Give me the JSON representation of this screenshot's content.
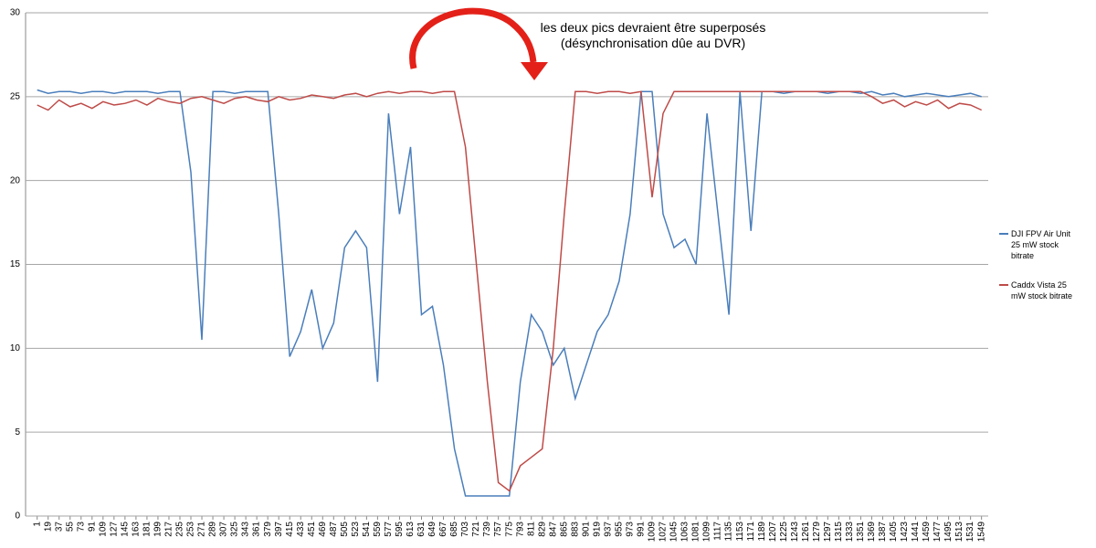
{
  "chart_data": {
    "type": "line",
    "annotations": [
      "les deux pics devraient être superposés",
      "(désynchronisation dûe au DVR)"
    ],
    "x": [
      1,
      19,
      37,
      55,
      73,
      91,
      109,
      127,
      145,
      163,
      181,
      199,
      217,
      235,
      253,
      271,
      289,
      307,
      325,
      343,
      361,
      379,
      397,
      415,
      433,
      451,
      469,
      487,
      505,
      523,
      541,
      559,
      577,
      595,
      613,
      631,
      649,
      667,
      685,
      703,
      721,
      739,
      757,
      775,
      793,
      811,
      829,
      847,
      865,
      883,
      901,
      919,
      937,
      955,
      973,
      991,
      1009,
      1027,
      1045,
      1063,
      1081,
      1099,
      1117,
      1135,
      1153,
      1171,
      1189,
      1207,
      1225,
      1243,
      1261,
      1279,
      1297,
      1315,
      1333,
      1351,
      1369,
      1387,
      1405,
      1423,
      1441,
      1459,
      1477,
      1495,
      1513,
      1531,
      1549
    ],
    "series": [
      {
        "name": "DJI FPV Air Unit 25 mW stock bitrate",
        "color": "#4a7ebb",
        "values": [
          25.4,
          25.2,
          25.3,
          25.3,
          25.2,
          25.3,
          25.3,
          25.2,
          25.3,
          25.3,
          25.3,
          25.2,
          25.3,
          25.3,
          20.5,
          10.5,
          25.3,
          25.3,
          25.2,
          25.3,
          25.3,
          25.3,
          18,
          9.5,
          11,
          13.5,
          10,
          11.5,
          16,
          17,
          16,
          8,
          24,
          18,
          22,
          12,
          12.5,
          9,
          4,
          1.2,
          1.2,
          1.2,
          1.2,
          1.2,
          8,
          12,
          11,
          9,
          10,
          7,
          9,
          11,
          12,
          14,
          18,
          25.3,
          25.3,
          18,
          16,
          16.5,
          15,
          24,
          18,
          12,
          25.3,
          17,
          25.3,
          25.3,
          25.2,
          25.3,
          25.3,
          25.3,
          25.2,
          25.3,
          25.3,
          25.2,
          25.3,
          25.1,
          25.2,
          25.0,
          25.1,
          25.2,
          25.1,
          25.0,
          25.1,
          25.2,
          25.0
        ]
      },
      {
        "name": "Caddx Vista 25 mW stock bitrate",
        "color": "#be4b48",
        "values": [
          24.5,
          24.2,
          24.8,
          24.4,
          24.6,
          24.3,
          24.7,
          24.5,
          24.6,
          24.8,
          24.5,
          24.9,
          24.7,
          24.6,
          24.9,
          25.0,
          24.8,
          24.6,
          24.9,
          25.0,
          24.8,
          24.7,
          25.0,
          24.8,
          24.9,
          25.1,
          25.0,
          24.9,
          25.1,
          25.2,
          25.0,
          25.2,
          25.3,
          25.2,
          25.3,
          25.3,
          25.2,
          25.3,
          25.3,
          22,
          15,
          8,
          2,
          1.5,
          3,
          3.5,
          4,
          10,
          18,
          25.3,
          25.3,
          25.2,
          25.3,
          25.3,
          25.2,
          25.3,
          19,
          24,
          25.3,
          25.3,
          25.3,
          25.3,
          25.3,
          25.3,
          25.3,
          25.3,
          25.3,
          25.3,
          25.3,
          25.3,
          25.3,
          25.3,
          25.3,
          25.3,
          25.3,
          25.3,
          25.0,
          24.6,
          24.8,
          24.4,
          24.7,
          24.5,
          24.8,
          24.3,
          24.6,
          24.5,
          24.2
        ]
      }
    ],
    "xlim": [
      -18,
      1560
    ],
    "ylim": [
      0,
      30
    ],
    "yticks": [
      0,
      5,
      10,
      15,
      20,
      25,
      30
    ],
    "grid": true
  }
}
